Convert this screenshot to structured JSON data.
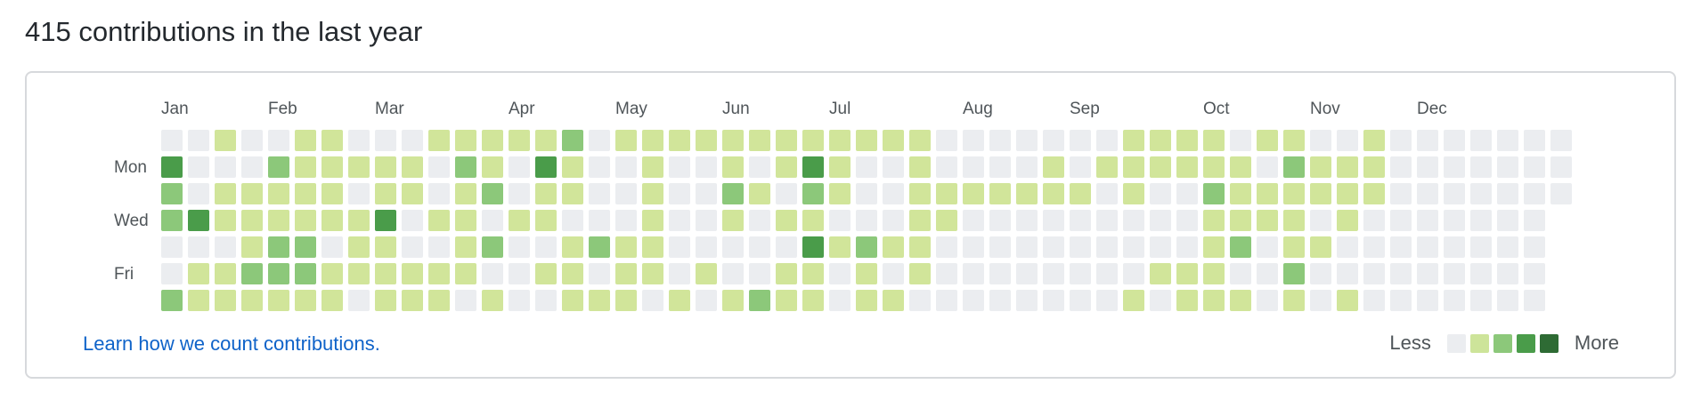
{
  "header": {
    "title": "415 contributions in the last year"
  },
  "graph": {
    "months": [
      "Jan",
      "Feb",
      "Mar",
      "Apr",
      "May",
      "Jun",
      "Jul",
      "Aug",
      "Sep",
      "Oct",
      "Nov",
      "Dec"
    ],
    "month_start_weeks": [
      0,
      4,
      8,
      13,
      17,
      21,
      25,
      30,
      34,
      39,
      43,
      47
    ],
    "day_labels": [
      "",
      "Mon",
      "",
      "Wed",
      "",
      "Fri",
      ""
    ],
    "levels": [
      "0020011000222223022222222212200000002221012002",
      "4000322222032042002001024200200002021112203222",
      "3022221012023022002003203200222222202003222222",
      "3422222240220220002002022000220000000002122020",
      "0001330220023002322000004232200000000001302200",
      "0123331121210021021010022020200000000222003000",
      "3222221022102002210202322022000000002012201020"
    ],
    "colors": {
      "level0": "#ebedf0",
      "level1": "#9be9a8",
      "level2": "#d1e59a",
      "level3": "#8cc87a",
      "level4": "#4a9c4a",
      "level5": "#2e6b34"
    }
  },
  "footer": {
    "learn_link": "Learn how we count contributions.",
    "legend_less": "Less",
    "legend_more": "More",
    "legend_colors": [
      "#ebedf0",
      "#cde49a",
      "#8cc87a",
      "#4a9c4a",
      "#2e6b34"
    ]
  }
}
